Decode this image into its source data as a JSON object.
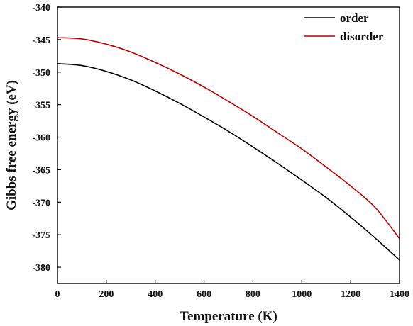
{
  "chart_data": {
    "type": "line",
    "xlabel": "Temperature (K)",
    "ylabel": "Gibbs free energy (eV)",
    "xlim": [
      0,
      1400
    ],
    "ylim": [
      -382.5,
      -340
    ],
    "xticks": [
      0,
      200,
      400,
      600,
      800,
      1000,
      1200,
      1400
    ],
    "yticks": [
      -340,
      -345,
      -350,
      -355,
      -360,
      -365,
      -370,
      -375,
      -380
    ],
    "grid": false,
    "legend_position": "top-right",
    "series": [
      {
        "name": "order",
        "color": "#000000",
        "x": [
          0,
          100,
          200,
          300,
          400,
          500,
          600,
          700,
          800,
          900,
          1000,
          1100,
          1200,
          1300,
          1400
        ],
        "y": [
          -348.7,
          -349.0,
          -349.9,
          -351.2,
          -352.9,
          -354.8,
          -356.9,
          -359.1,
          -361.5,
          -364.0,
          -366.6,
          -369.3,
          -372.3,
          -375.5,
          -378.9
        ]
      },
      {
        "name": "disorder",
        "color": "#c00000",
        "x": [
          0,
          100,
          200,
          300,
          400,
          500,
          600,
          700,
          800,
          900,
          1000,
          1100,
          1200,
          1300,
          1400
        ],
        "y": [
          -344.7,
          -344.9,
          -345.7,
          -346.9,
          -348.5,
          -350.3,
          -352.3,
          -354.5,
          -356.8,
          -359.3,
          -361.8,
          -364.6,
          -367.5,
          -370.8,
          -375.6
        ]
      }
    ]
  }
}
